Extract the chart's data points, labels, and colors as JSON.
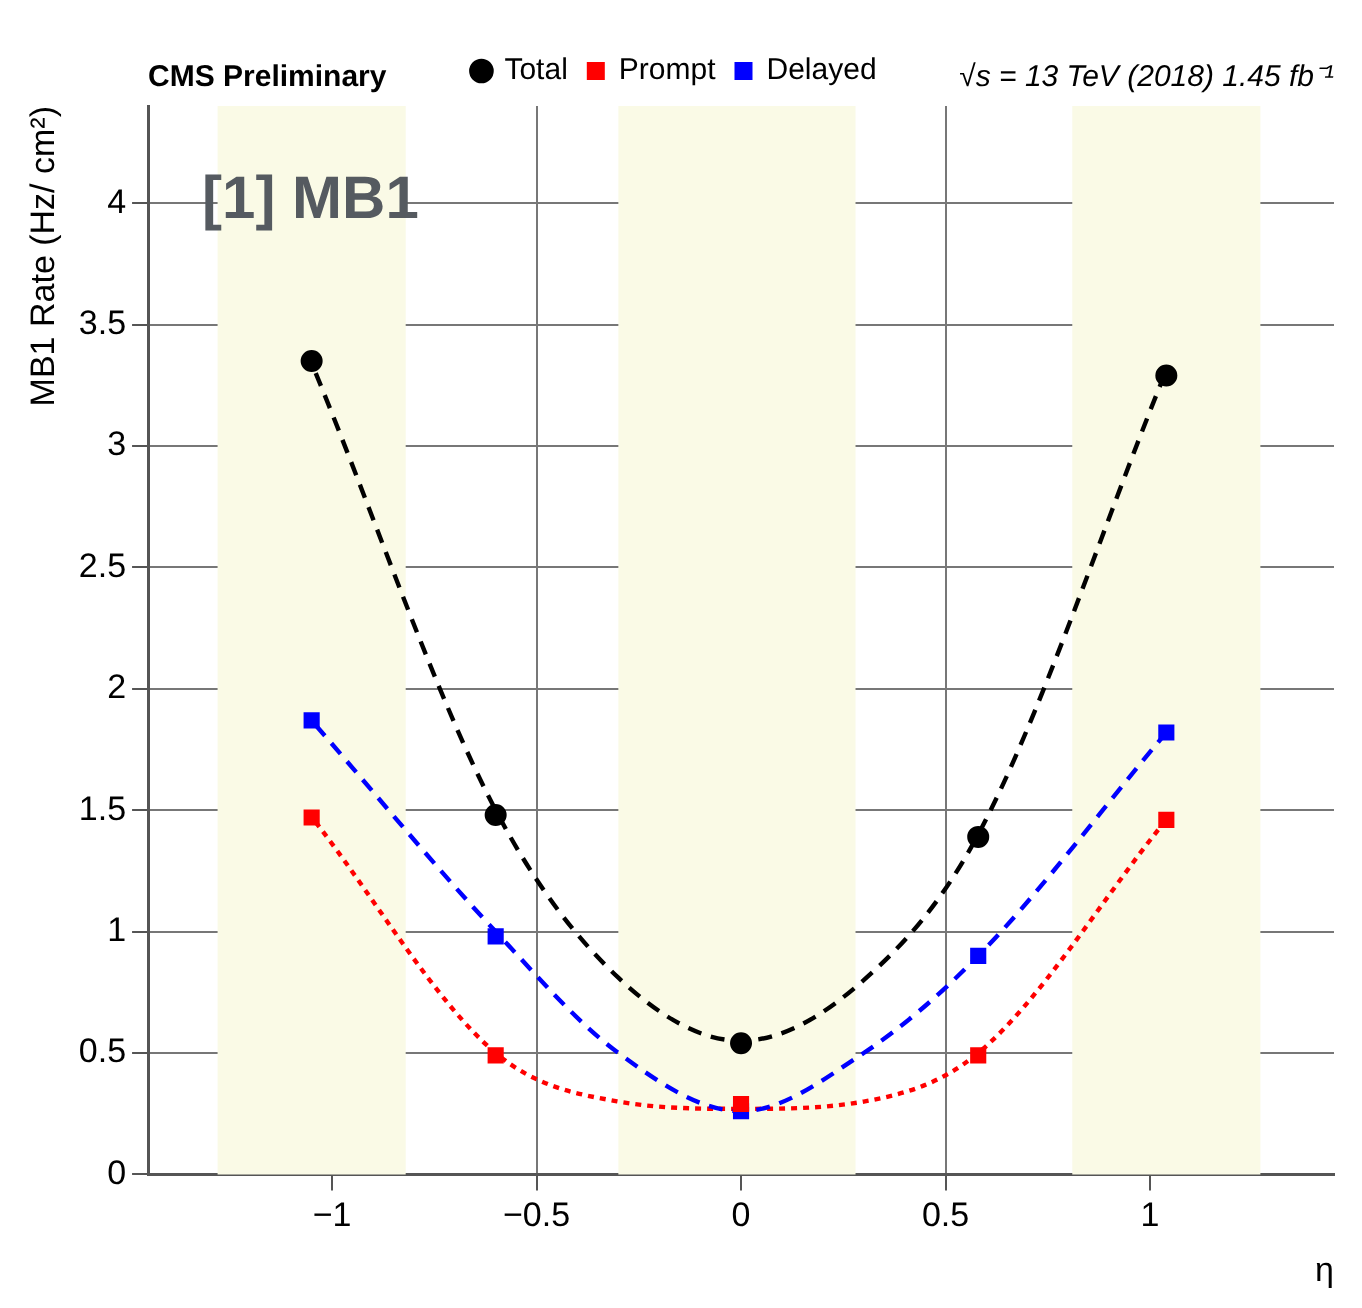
{
  "chart_data": {
    "type": "scatter",
    "title": "CMS Preliminary",
    "subtitle": "√s = 13 TeV (2018) 1.45 fb⁻¹",
    "xlabel": "η",
    "ylabel": "MB1 Rate (Hz/ cm²)",
    "annotations": [
      "[1] MB1"
    ],
    "xlim": [
      -1.45,
      1.45
    ],
    "ylim": [
      0,
      4.4
    ],
    "xticks": [
      -1,
      -0.5,
      0,
      0.5,
      1
    ],
    "yticks": [
      0,
      0.5,
      1,
      1.5,
      2,
      2.5,
      3,
      3.5,
      4
    ],
    "grid": true,
    "legend": "top",
    "bands": [
      {
        "axis": "x",
        "from": -1.28,
        "to": -0.82,
        "color": "#fafae6"
      },
      {
        "axis": "x",
        "from": -0.3,
        "to": 0.28,
        "color": "#fafae6"
      },
      {
        "axis": "x",
        "from": 0.81,
        "to": 1.27,
        "color": "#fafae6"
      }
    ],
    "series": [
      {
        "name": "Delayed",
        "color": "#0000ff",
        "marker": "square",
        "x": [
          -1.05,
          -0.6,
          0,
          0.58,
          1.04
        ],
        "values": [
          1.87,
          0.98,
          0.26,
          0.9,
          1.82
        ]
      },
      {
        "name": "Prompt",
        "color": "#ff0000",
        "marker": "square",
        "x": [
          -1.05,
          -0.6,
          0,
          0.58,
          1.04
        ],
        "values": [
          1.47,
          0.49,
          0.29,
          0.49,
          1.46
        ]
      },
      {
        "name": "Total",
        "color": "#000000",
        "marker": "circle",
        "x": [
          -1.05,
          -0.6,
          0,
          0.58,
          1.04
        ],
        "values": [
          3.35,
          1.48,
          0.54,
          1.39,
          3.29
        ]
      },
      {
        "type": "line",
        "color": "#0000ff",
        "line_style": "dashed",
        "x": [
          -1.04,
          -0.6,
          -0.3,
          0,
          0.3,
          0.58,
          1.03
        ],
        "values": [
          1.85,
          1.0,
          0.5,
          0.26,
          0.5,
          0.9,
          1.8
        ]
      },
      {
        "type": "line",
        "color": "#ff0000",
        "line_style": "dotted",
        "x": [
          -1.04,
          -0.6,
          -0.3,
          0,
          0.3,
          0.58,
          1.03
        ],
        "values": [
          1.45,
          0.5,
          0.3,
          0.27,
          0.3,
          0.5,
          1.44
        ]
      },
      {
        "type": "line",
        "color": "#000000",
        "line_style": "dashed",
        "x": [
          -1.04,
          -0.6,
          -0.3,
          0,
          0.3,
          0.58,
          1.03
        ],
        "values": [
          3.3,
          1.5,
          0.81,
          0.55,
          0.8,
          1.4,
          3.27
        ]
      }
    ]
  }
}
